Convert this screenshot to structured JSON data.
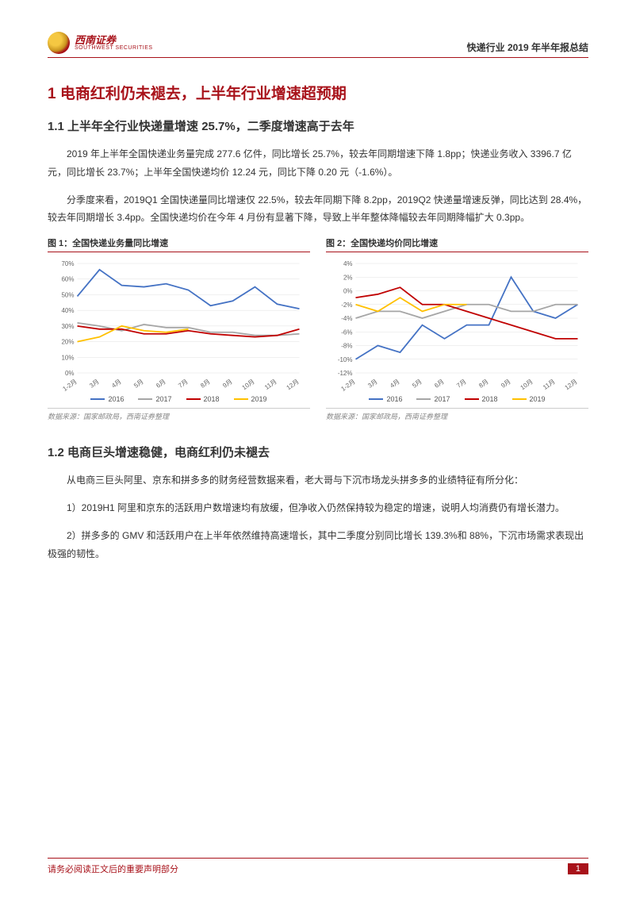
{
  "header": {
    "logo_cn": "西南证券",
    "logo_en": "SOUTHWEST SECURITIES",
    "right": "快递行业 2019 年半年报总结"
  },
  "h1": "1 电商红利仍未褪去，上半年行业增速超预期",
  "h2_1": "1.1 上半年全行业快递量增速 25.7%，二季度增速高于去年",
  "p1": "2019 年上半年全国快递业务量完成 277.6 亿件，同比增长 25.7%，较去年同期增速下降 1.8pp；快递业务收入 3396.7 亿元，同比增长 23.7%；上半年全国快递均价 12.24 元，同比下降 0.20 元（-1.6%）。",
  "p2": "分季度来看，2019Q1 全国快递量同比增速仅 22.5%，较去年同期下降 8.2pp，2019Q2 快递量增速反弹，同比达到 28.4%，较去年同期增长 3.4pp。全国快递均价在今年 4 月份有显著下降，导致上半年整体降幅较去年同期降幅扩大 0.3pp。",
  "chart1": {
    "title": "图 1：全国快递业务量同比增速",
    "source": "数据来源：国家邮政局，西南证券整理",
    "x_labels": [
      "1-2月",
      "3月",
      "4月",
      "5月",
      "6月",
      "7月",
      "8月",
      "9月",
      "10月",
      "11月",
      "12月"
    ],
    "y_ticks": [
      0,
      10,
      20,
      30,
      40,
      50,
      60,
      70
    ],
    "y_format": "%",
    "ylim": [
      0,
      70
    ],
    "grid_color": "#e0e0e0",
    "series": [
      {
        "name": "2016",
        "color": "#4472c4",
        "data": [
          49,
          66,
          56,
          55,
          57,
          53,
          43,
          46,
          55,
          44,
          41
        ]
      },
      {
        "name": "2017",
        "color": "#a6a6a6",
        "data": [
          32,
          30,
          27,
          31,
          29,
          29,
          26,
          26,
          24,
          24,
          25
        ]
      },
      {
        "name": "2018",
        "color": "#c00000",
        "data": [
          30,
          28,
          28,
          25,
          25,
          27,
          25,
          24,
          23,
          24,
          28
        ]
      },
      {
        "name": "2019",
        "color": "#ffc000",
        "data": [
          20,
          23,
          30,
          27,
          26,
          28,
          null,
          null,
          null,
          null,
          null
        ]
      }
    ]
  },
  "chart2": {
    "title": "图 2：全国快递均价同比增速",
    "source": "数据来源：国家邮政局，西南证券整理",
    "x_labels": [
      "1-2月",
      "3月",
      "4月",
      "5月",
      "6月",
      "7月",
      "8月",
      "9月",
      "10月",
      "11月",
      "12月"
    ],
    "y_ticks": [
      -12,
      -10,
      -8,
      -6,
      -4,
      -2,
      0,
      2,
      4
    ],
    "y_format": "%",
    "ylim": [
      -12,
      4
    ],
    "grid_color": "#e0e0e0",
    "series": [
      {
        "name": "2016",
        "color": "#4472c4",
        "data": [
          -10,
          -8,
          -9,
          -5,
          -7,
          -5,
          -5,
          2,
          -3,
          -4,
          -2
        ]
      },
      {
        "name": "2017",
        "color": "#a6a6a6",
        "data": [
          -4,
          -3,
          -3,
          -4,
          -3,
          -2,
          -2,
          -3,
          -3,
          -2,
          -2
        ]
      },
      {
        "name": "2018",
        "color": "#c00000",
        "data": [
          -1,
          -0.5,
          0.5,
          -2,
          -2,
          -3,
          -4,
          -5,
          -6,
          -7,
          -7
        ]
      },
      {
        "name": "2019",
        "color": "#ffc000",
        "data": [
          -2,
          -3,
          -1,
          -3,
          -2,
          -2,
          null,
          null,
          null,
          null,
          null
        ]
      }
    ]
  },
  "h2_2": "1.2 电商巨头增速稳健，电商红利仍未褪去",
  "p3": "从电商三巨头阿里、京东和拼多多的财务经营数据来看，老大哥与下沉市场龙头拼多多的业绩特征有所分化：",
  "p4": "1）2019H1 阿里和京东的活跃用户数增速均有放缓，但净收入仍然保持较为稳定的增速，说明人均消费仍有增长潜力。",
  "p5": "2）拼多多的 GMV 和活跃用户在上半年依然维持高速增长，其中二季度分别同比增长 139.3%和 88%，下沉市场需求表现出极强的韧性。",
  "footer": {
    "text": "请务必阅读正文后的重要声明部分",
    "page": "1"
  },
  "legend_labels": [
    "2016",
    "2017",
    "2018",
    "2019"
  ]
}
